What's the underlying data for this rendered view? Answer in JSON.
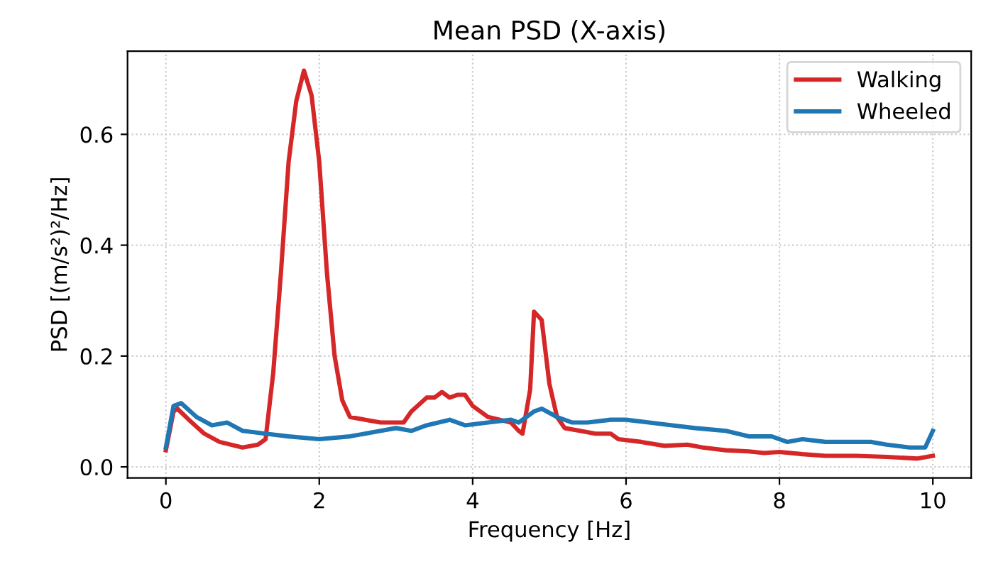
{
  "chart_data": {
    "type": "line",
    "title": "Mean PSD (X-axis)",
    "xlabel": "Frequency [Hz]",
    "ylabel": "PSD [(m/s²)²/Hz]",
    "xlim": [
      -0.5,
      10.5
    ],
    "xticks": [
      0,
      2,
      4,
      6,
      8,
      10
    ],
    "ylim": [
      -0.02,
      0.75
    ],
    "yticks": [
      {
        "value": 0,
        "label": "0.0"
      },
      0.2,
      0.4,
      0.6
    ],
    "grid": true,
    "legend": "top right",
    "line_style": "solid",
    "marker": "none",
    "series": [
      {
        "name": "Walking",
        "color": "#d62728",
        "x": [
          0,
          0.1,
          0.15,
          0.3,
          0.5,
          0.7,
          1.0,
          1.2,
          1.3,
          1.4,
          1.5,
          1.6,
          1.7,
          1.8,
          1.9,
          2.0,
          2.1,
          2.2,
          2.3,
          2.4,
          2.6,
          2.8,
          3.0,
          3.1,
          3.2,
          3.4,
          3.5,
          3.6,
          3.7,
          3.8,
          3.9,
          4.0,
          4.2,
          4.5,
          4.6,
          4.65,
          4.75,
          4.8,
          4.9,
          5.0,
          5.1,
          5.2,
          5.4,
          5.6,
          5.8,
          5.9,
          6.2,
          6.5,
          6.8,
          7.0,
          7.3,
          7.6,
          7.8,
          8.0,
          8.3,
          8.6,
          9.0,
          9.4,
          9.8,
          10.0
        ],
        "values": [
          0.03,
          0.1,
          0.105,
          0.085,
          0.06,
          0.045,
          0.035,
          0.04,
          0.05,
          0.17,
          0.35,
          0.55,
          0.66,
          0.715,
          0.67,
          0.55,
          0.35,
          0.2,
          0.12,
          0.09,
          0.085,
          0.08,
          0.08,
          0.08,
          0.1,
          0.125,
          0.125,
          0.135,
          0.125,
          0.13,
          0.13,
          0.11,
          0.09,
          0.08,
          0.065,
          0.06,
          0.14,
          0.28,
          0.265,
          0.15,
          0.09,
          0.07,
          0.065,
          0.06,
          0.06,
          0.05,
          0.045,
          0.038,
          0.04,
          0.035,
          0.03,
          0.028,
          0.025,
          0.027,
          0.023,
          0.02,
          0.02,
          0.018,
          0.015,
          0.02
        ]
      },
      {
        "name": "Wheeled",
        "color": "#1f77b4",
        "x": [
          0,
          0.1,
          0.2,
          0.4,
          0.6,
          0.8,
          1.0,
          1.3,
          1.6,
          2.0,
          2.4,
          2.8,
          3.0,
          3.2,
          3.4,
          3.7,
          3.9,
          4.2,
          4.5,
          4.6,
          4.8,
          4.9,
          5.1,
          5.3,
          5.5,
          5.8,
          6.0,
          6.3,
          6.6,
          6.9,
          7.3,
          7.6,
          7.9,
          8.1,
          8.3,
          8.6,
          8.9,
          9.2,
          9.4,
          9.7,
          9.9,
          10.0
        ],
        "values": [
          0.035,
          0.11,
          0.115,
          0.09,
          0.075,
          0.08,
          0.065,
          0.06,
          0.055,
          0.05,
          0.055,
          0.065,
          0.07,
          0.065,
          0.075,
          0.085,
          0.075,
          0.08,
          0.085,
          0.08,
          0.1,
          0.105,
          0.09,
          0.08,
          0.08,
          0.085,
          0.085,
          0.08,
          0.075,
          0.07,
          0.065,
          0.055,
          0.055,
          0.045,
          0.05,
          0.045,
          0.045,
          0.045,
          0.04,
          0.035,
          0.035,
          0.065
        ]
      }
    ]
  }
}
